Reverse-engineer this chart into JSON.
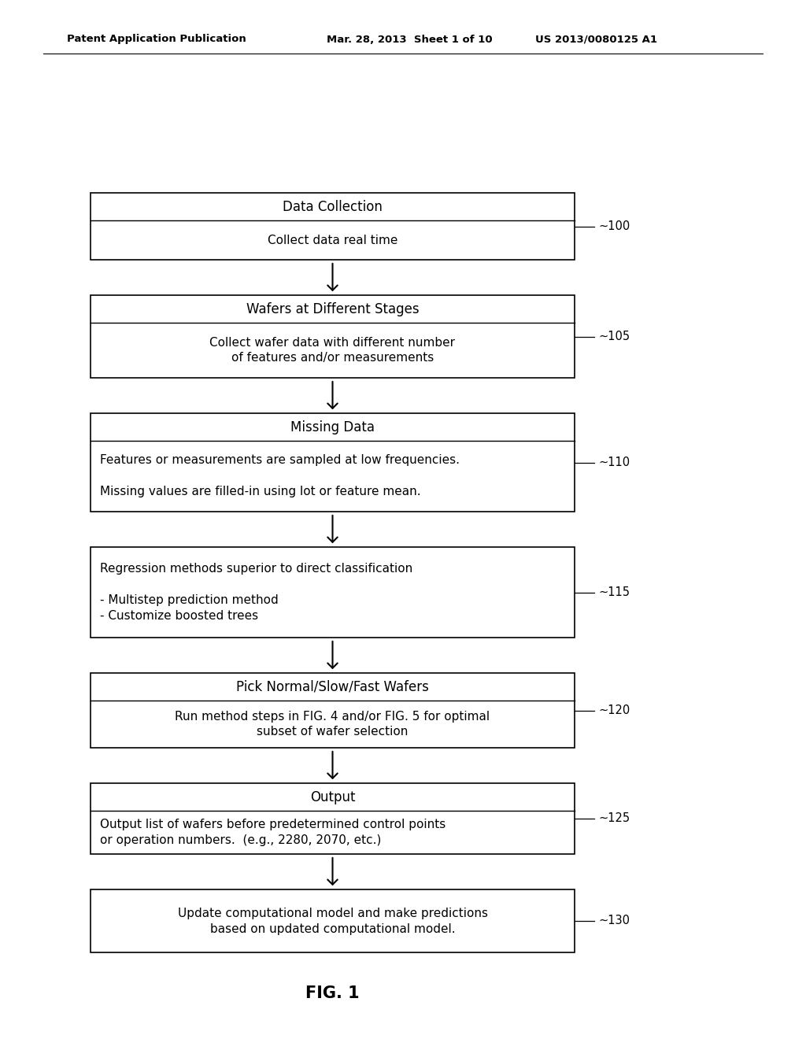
{
  "header_left": "Patent Application Publication",
  "header_mid": "Mar. 28, 2013  Sheet 1 of 10",
  "header_right": "US 2013/0080125 A1",
  "fig_label": "FIG. 1",
  "background": "#ffffff",
  "boxes": [
    {
      "id": 0,
      "title": "Data Collection",
      "body_lines": [
        "Collect data real time"
      ],
      "body_align": "center",
      "label": "100",
      "has_title": true
    },
    {
      "id": 1,
      "title": "Wafers at Different Stages",
      "body_lines": [
        "Collect wafer data with different number",
        "of features and/or measurements"
      ],
      "body_align": "center",
      "label": "105",
      "has_title": true
    },
    {
      "id": 2,
      "title": "Missing Data",
      "body_lines": [
        "Features or measurements are sampled at low frequencies.",
        "",
        "Missing values are filled-in using lot or feature mean."
      ],
      "body_align": "left",
      "label": "110",
      "has_title": true
    },
    {
      "id": 3,
      "title": null,
      "body_lines": [
        "Regression methods superior to direct classification",
        "",
        "- Multistep prediction method",
        "- Customize boosted trees"
      ],
      "body_align": "left",
      "label": "115",
      "has_title": false
    },
    {
      "id": 4,
      "title": "Pick Normal/Slow/Fast Wafers",
      "body_lines": [
        "Run method steps in FIG. 4 and/or FIG. 5 for optimal",
        "subset of wafer selection"
      ],
      "body_align": "center",
      "label": "120",
      "has_title": true
    },
    {
      "id": 5,
      "title": "Output",
      "body_lines": [
        "Output list of wafers before predetermined control points",
        "or operation numbers.  (e.g., 2280, 2070, etc.)"
      ],
      "body_align": "left",
      "label": "125",
      "has_title": true
    },
    {
      "id": 6,
      "title": null,
      "body_lines": [
        "Update computational model and make predictions",
        "based on updated computational model."
      ],
      "body_align": "center",
      "label": "130",
      "has_title": false
    }
  ]
}
